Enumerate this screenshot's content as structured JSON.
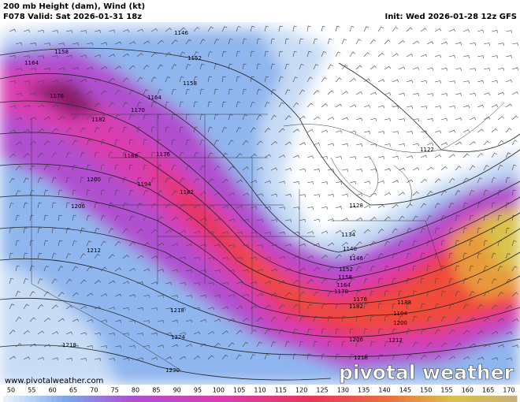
{
  "header": {
    "title": "200 mb Height (dam), Wind (kt)",
    "valid": "F078 Valid: Sat 2026-01-31 18z",
    "init": "Init: Wed 2026-01-28 12z GFS"
  },
  "contour_labels": [
    "1146",
    "1152",
    "1158",
    "1164",
    "1170",
    "1176",
    "1182",
    "1188",
    "1176",
    "1194",
    "1182",
    "1200",
    "1206",
    "1212",
    "1218",
    "1224",
    "1230",
    "1218",
    "1158",
    "1164",
    "1122",
    "1128",
    "1134",
    "1140",
    "1146",
    "1152",
    "1158",
    "1164",
    "1170",
    "1176",
    "1182",
    "1188",
    "1194",
    "1200",
    "1206",
    "1212",
    "1218"
  ],
  "watermark": {
    "url": "www.pivotalweather.com",
    "brand": "pivotal weather"
  },
  "colorbar": {
    "ticks": [
      50,
      55,
      60,
      65,
      70,
      75,
      80,
      85,
      90,
      95,
      100,
      105,
      110,
      115,
      120,
      125,
      130,
      135,
      140,
      145,
      150,
      155,
      160,
      165,
      170
    ]
  }
}
